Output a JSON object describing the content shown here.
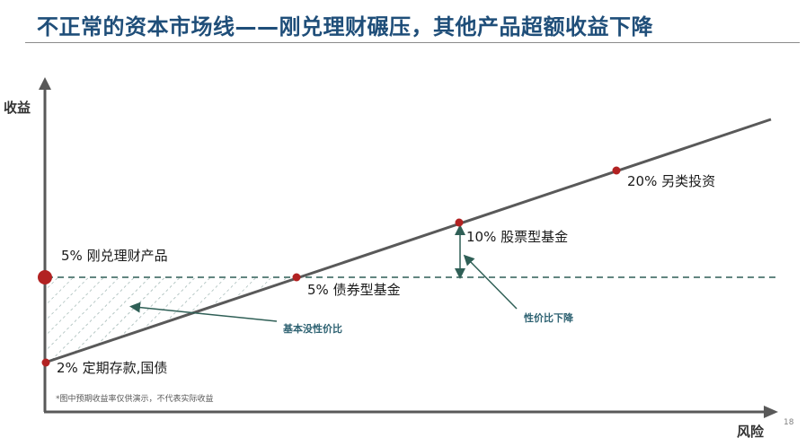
{
  "title": "不正常的资本市场线——刚兑理财碾压，其他产品超额收益下降",
  "axes": {
    "y_label": "收益",
    "x_label": "风险"
  },
  "points": [
    {
      "label": "5% 刚兑理财产品"
    },
    {
      "label": "2% 定期存款,国债"
    },
    {
      "label": "5% 债券型基金"
    },
    {
      "label": "10% 股票型基金"
    },
    {
      "label": "20% 另类投资"
    }
  ],
  "annotations": {
    "no_value": "基本没性价比",
    "value_down": "性价比下降"
  },
  "footnote": "*图中预期收益率仅供演示，不代表实际收益",
  "page_number": "18",
  "colors": {
    "title": "#1f4e79",
    "point": "#b22222",
    "dashed": "#2f5f56",
    "annotation": "#2e6272",
    "line": "#595959"
  }
}
